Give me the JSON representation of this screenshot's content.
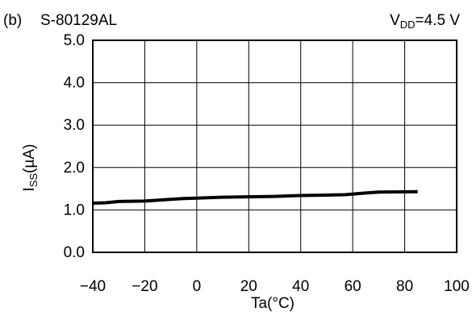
{
  "header": {
    "panel": "(b)",
    "part": "S-80129AL",
    "condition_prefix": "V",
    "condition_sub": "DD",
    "condition_suffix": "=4.5 V"
  },
  "chart_data": {
    "type": "line",
    "title": "",
    "xlabel": "Ta(°C)",
    "ylabel_main": "I",
    "ylabel_sub": "SS",
    "ylabel_unit": "(µA)",
    "xlim": [
      -40,
      100
    ],
    "ylim": [
      0.0,
      5.0
    ],
    "x_ticks": [
      -40,
      -20,
      0,
      20,
      40,
      60,
      80,
      100
    ],
    "x_tick_labels": [
      "−40",
      "−20",
      "0",
      "20",
      "40",
      "60",
      "80",
      "100"
    ],
    "y_ticks": [
      0,
      1,
      2,
      3,
      4,
      5
    ],
    "y_tick_labels": [
      "0.0",
      "1.0",
      "2.0",
      "3.0",
      "4.0",
      "5.0"
    ],
    "grid": true,
    "series": [
      {
        "x": [
          -40,
          -35,
          -30,
          -20,
          -10,
          -5,
          0,
          10,
          20,
          30,
          40,
          50,
          57,
          65,
          70,
          85
        ],
        "y": [
          1.16,
          1.17,
          1.2,
          1.21,
          1.25,
          1.27,
          1.28,
          1.3,
          1.31,
          1.32,
          1.34,
          1.35,
          1.36,
          1.4,
          1.42,
          1.43
        ]
      }
    ]
  }
}
